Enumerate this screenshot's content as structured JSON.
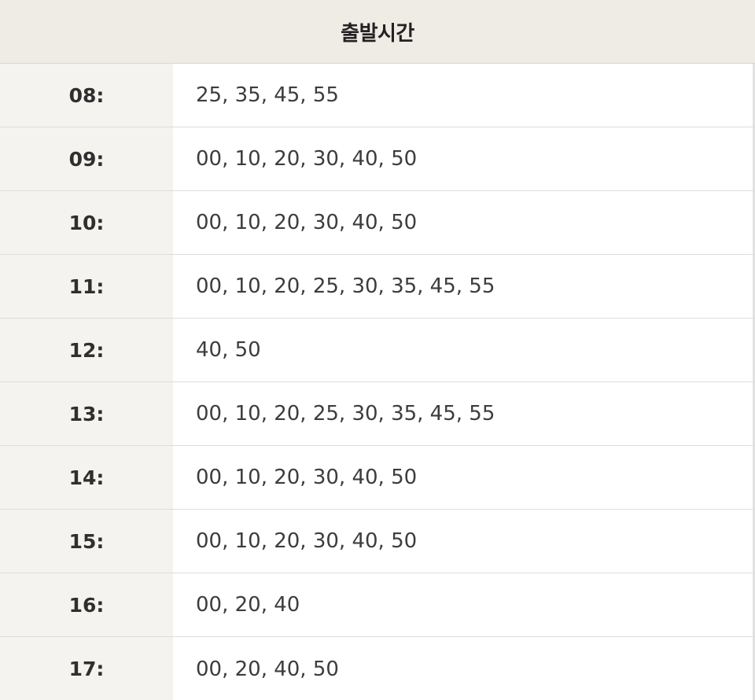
{
  "header": {
    "title": "출발시간"
  },
  "rows": [
    {
      "hour": "08:",
      "minutes": "25, 35, 45, 55"
    },
    {
      "hour": "09:",
      "minutes": "00, 10, 20, 30, 40, 50"
    },
    {
      "hour": "10:",
      "minutes": "00, 10, 20, 30, 40, 50"
    },
    {
      "hour": "11:",
      "minutes": "00, 10, 20, 25, 30, 35, 45, 55"
    },
    {
      "hour": "12:",
      "minutes": "40, 50"
    },
    {
      "hour": "13:",
      "minutes": "00, 10, 20, 25, 30, 35, 45, 55"
    },
    {
      "hour": "14:",
      "minutes": "00, 10, 20, 30, 40, 50"
    },
    {
      "hour": "15:",
      "minutes": "00, 10, 20, 30, 40, 50"
    },
    {
      "hour": "16:",
      "minutes": "00, 20, 40"
    },
    {
      "hour": "17:",
      "minutes": "00, 20, 40, 50"
    }
  ],
  "colors": {
    "header_bg": "#efebe5",
    "hour_column_bg": "#f4f3f0",
    "divider": "#dddddd"
  }
}
